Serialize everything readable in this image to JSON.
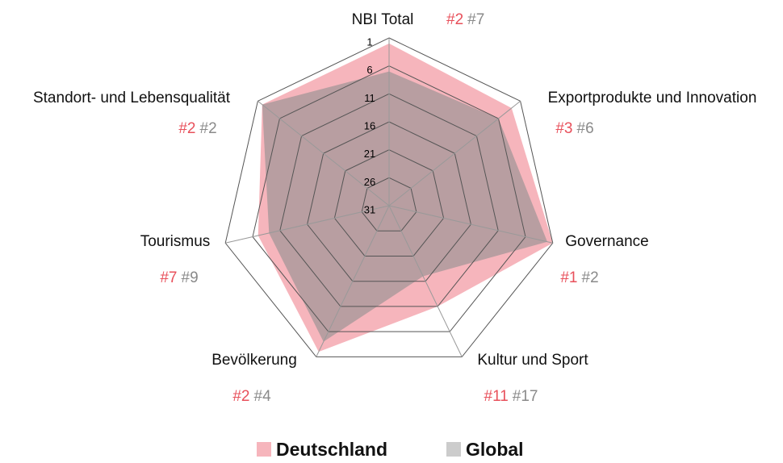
{
  "chart_data": {
    "type": "radar",
    "categories": [
      "NBI Total",
      "Exportprodukte und Innovation",
      "Governance",
      "Kultur und Sport",
      "Bevölkerung",
      "Tourismus",
      "Standort- und Lebensqualität"
    ],
    "series": [
      {
        "name": "Deutschland",
        "color": "#f4a3ab",
        "label_color": "#e8505b",
        "values": [
          2,
          3,
          1,
          11,
          2,
          7,
          2
        ],
        "value_labels": [
          "#2",
          "#3",
          "#1",
          "#11",
          "#2",
          "#7",
          "#2"
        ]
      },
      {
        "name": "Global",
        "color": "#8f8f8f",
        "label_color": "#8a8a8a",
        "values": [
          7,
          6,
          2,
          17,
          4,
          9,
          2
        ],
        "value_labels": [
          "#7",
          "#6",
          "#2",
          "#17",
          "#4",
          "#9",
          "#2"
        ]
      }
    ],
    "rlim": [
      31,
      1
    ],
    "rticks": [
      1,
      6,
      11,
      16,
      21,
      26,
      31
    ],
    "grid": true,
    "legend": "bottom"
  }
}
